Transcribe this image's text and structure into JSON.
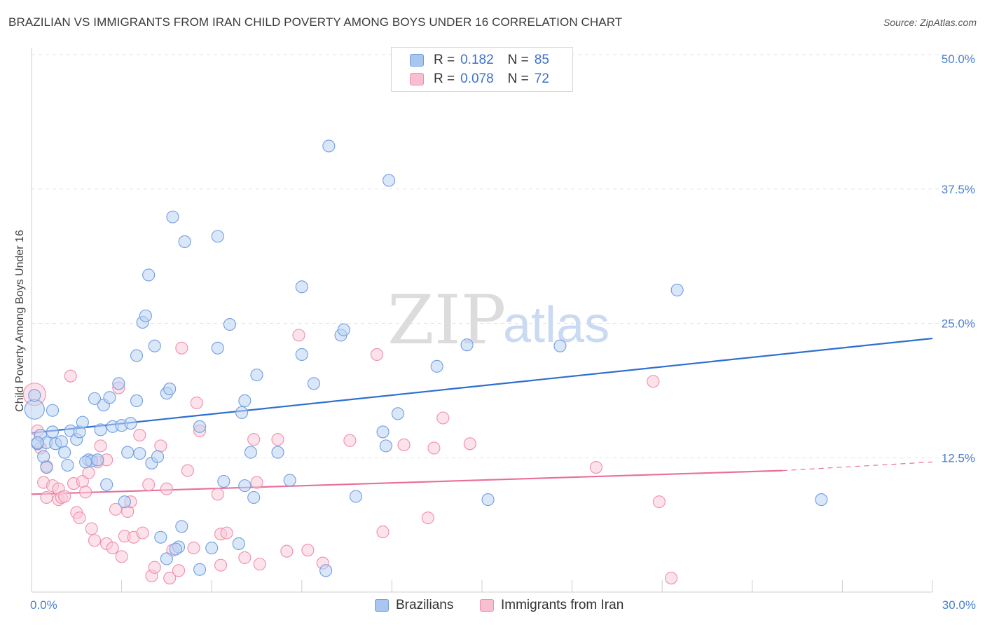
{
  "title": "BRAZILIAN VS IMMIGRANTS FROM IRAN CHILD POVERTY AMONG BOYS UNDER 16 CORRELATION CHART",
  "source": "Source: ZipAtlas.com",
  "watermark": {
    "zip": "ZIP",
    "atlas": "atlas"
  },
  "legend": {
    "rows": [
      {
        "r_label": "R =",
        "r_value": "0.182",
        "n_label": "N =",
        "n_value": "85",
        "color": "#a8c6ef",
        "stroke": "#6f9ee0"
      },
      {
        "r_label": "R =",
        "r_value": "0.078",
        "n_label": "N =",
        "n_value": "72",
        "color": "#f7bfd0",
        "stroke": "#ee8fab"
      }
    ]
  },
  "bottom_legend": {
    "brazilians": "Brazilians",
    "iran": "Immigrants from Iran"
  },
  "chart_data": {
    "type": "scatter",
    "xlabel": "",
    "ylabel": "Child Poverty Among Boys Under 16",
    "x_ticks": [
      "0.0%",
      "30.0%"
    ],
    "y_ticks": [
      "12.5%",
      "25.0%",
      "37.5%",
      "50.0%"
    ],
    "xlim": [
      0,
      30
    ],
    "ylim": [
      0,
      50
    ],
    "grid": true,
    "legend_position": "top-center",
    "colors": {
      "brazilians": "#6f9ee0",
      "brazilians_fill": "#bcd4f4",
      "iran": "#ee8fab",
      "iran_fill": "#f9cbd9",
      "line_blue": "#2e6fd0",
      "line_pink": "#e86f9a"
    },
    "series": [
      {
        "name": "Brazilians",
        "r": 0.182,
        "n": 85,
        "trend": {
          "x": [
            0,
            30
          ],
          "y": [
            14.8,
            23.6
          ]
        },
        "points": [
          [
            0.1,
            17.0
          ],
          [
            0.1,
            18.3
          ],
          [
            0.2,
            13.8
          ],
          [
            0.3,
            14.6
          ],
          [
            0.4,
            12.6
          ],
          [
            0.5,
            11.6
          ],
          [
            0.5,
            13.9
          ],
          [
            0.7,
            14.9
          ],
          [
            0.7,
            16.9
          ],
          [
            0.8,
            13.8
          ],
          [
            1.0,
            14.0
          ],
          [
            1.1,
            13.0
          ],
          [
            1.2,
            11.8
          ],
          [
            1.3,
            15.0
          ],
          [
            1.5,
            14.2
          ],
          [
            1.6,
            14.9
          ],
          [
            1.7,
            15.8
          ],
          [
            1.9,
            12.3
          ],
          [
            2.0,
            12.2
          ],
          [
            2.1,
            18.0
          ],
          [
            2.2,
            12.3
          ],
          [
            2.3,
            15.1
          ],
          [
            2.4,
            17.4
          ],
          [
            2.5,
            10.0
          ],
          [
            2.6,
            18.1
          ],
          [
            2.7,
            15.4
          ],
          [
            2.9,
            19.4
          ],
          [
            3.0,
            15.5
          ],
          [
            3.1,
            8.4
          ],
          [
            3.2,
            13.0
          ],
          [
            3.3,
            15.7
          ],
          [
            3.5,
            17.8
          ],
          [
            3.5,
            22.0
          ],
          [
            3.6,
            12.9
          ],
          [
            3.7,
            25.1
          ],
          [
            3.8,
            25.7
          ],
          [
            3.9,
            29.5
          ],
          [
            4.0,
            12.0
          ],
          [
            4.1,
            22.9
          ],
          [
            4.2,
            12.6
          ],
          [
            4.3,
            5.1
          ],
          [
            4.5,
            18.5
          ],
          [
            4.5,
            3.1
          ],
          [
            4.6,
            18.9
          ],
          [
            4.7,
            34.9
          ],
          [
            4.9,
            4.2
          ],
          [
            5.0,
            6.1
          ],
          [
            5.1,
            32.6
          ],
          [
            5.6,
            2.1
          ],
          [
            5.6,
            15.4
          ],
          [
            6.0,
            4.1
          ],
          [
            6.2,
            33.1
          ],
          [
            6.2,
            22.7
          ],
          [
            6.4,
            10.3
          ],
          [
            6.6,
            24.9
          ],
          [
            6.9,
            4.5
          ],
          [
            7.0,
            16.7
          ],
          [
            7.1,
            17.8
          ],
          [
            7.1,
            9.9
          ],
          [
            7.3,
            13.0
          ],
          [
            7.4,
            8.8
          ],
          [
            7.5,
            20.2
          ],
          [
            8.2,
            13.0
          ],
          [
            8.6,
            10.4
          ],
          [
            9.0,
            22.1
          ],
          [
            9.0,
            28.4
          ],
          [
            9.4,
            19.4
          ],
          [
            9.8,
            2.0
          ],
          [
            9.9,
            41.5
          ],
          [
            10.3,
            23.9
          ],
          [
            10.4,
            24.4
          ],
          [
            10.8,
            8.9
          ],
          [
            11.7,
            14.9
          ],
          [
            11.8,
            13.6
          ],
          [
            11.9,
            38.3
          ],
          [
            12.2,
            16.6
          ],
          [
            13.5,
            21.0
          ],
          [
            14.5,
            23.0
          ],
          [
            15.2,
            8.6
          ],
          [
            17.6,
            22.9
          ],
          [
            21.5,
            28.1
          ],
          [
            26.3,
            8.6
          ],
          [
            0.2,
            13.9
          ],
          [
            1.8,
            12.1
          ],
          [
            4.8,
            4.0
          ]
        ]
      },
      {
        "name": "Immigrants from Iran",
        "r": 0.078,
        "n": 72,
        "trend": {
          "x": [
            0,
            25
          ],
          "y": [
            9.1,
            11.3
          ]
        },
        "trend_dashed": {
          "x": [
            25,
            30
          ],
          "y": [
            11.3,
            12.1
          ]
        },
        "points": [
          [
            0.1,
            18.4
          ],
          [
            0.2,
            15.0
          ],
          [
            0.3,
            13.4
          ],
          [
            0.4,
            10.2
          ],
          [
            0.5,
            11.7
          ],
          [
            0.5,
            8.8
          ],
          [
            0.7,
            9.9
          ],
          [
            0.9,
            8.6
          ],
          [
            0.9,
            9.6
          ],
          [
            1.0,
            8.8
          ],
          [
            1.1,
            8.9
          ],
          [
            1.3,
            20.1
          ],
          [
            1.4,
            10.1
          ],
          [
            1.5,
            7.4
          ],
          [
            1.6,
            6.9
          ],
          [
            1.7,
            10.3
          ],
          [
            1.8,
            9.3
          ],
          [
            1.9,
            11.1
          ],
          [
            2.0,
            5.9
          ],
          [
            2.1,
            4.8
          ],
          [
            2.2,
            12.1
          ],
          [
            2.3,
            13.6
          ],
          [
            2.5,
            4.5
          ],
          [
            2.5,
            12.3
          ],
          [
            2.7,
            4.1
          ],
          [
            2.8,
            7.7
          ],
          [
            2.9,
            19.0
          ],
          [
            3.0,
            3.3
          ],
          [
            3.1,
            5.2
          ],
          [
            3.2,
            7.5
          ],
          [
            3.3,
            8.4
          ],
          [
            3.4,
            5.1
          ],
          [
            3.6,
            14.6
          ],
          [
            3.7,
            5.5
          ],
          [
            3.9,
            10.0
          ],
          [
            4.0,
            1.5
          ],
          [
            4.1,
            2.3
          ],
          [
            4.3,
            13.6
          ],
          [
            4.5,
            9.6
          ],
          [
            4.6,
            1.3
          ],
          [
            4.7,
            3.9
          ],
          [
            4.9,
            2.0
          ],
          [
            5.0,
            22.7
          ],
          [
            5.2,
            11.3
          ],
          [
            5.4,
            4.1
          ],
          [
            5.5,
            17.6
          ],
          [
            5.6,
            15.0
          ],
          [
            6.2,
            9.1
          ],
          [
            6.3,
            2.5
          ],
          [
            6.3,
            5.4
          ],
          [
            6.5,
            5.5
          ],
          [
            7.1,
            3.2
          ],
          [
            7.4,
            14.2
          ],
          [
            7.5,
            10.2
          ],
          [
            7.6,
            2.6
          ],
          [
            8.2,
            14.2
          ],
          [
            8.5,
            3.8
          ],
          [
            8.9,
            23.9
          ],
          [
            9.2,
            3.9
          ],
          [
            9.7,
            2.7
          ],
          [
            10.6,
            14.1
          ],
          [
            11.5,
            22.1
          ],
          [
            11.7,
            5.6
          ],
          [
            12.4,
            13.7
          ],
          [
            13.2,
            6.9
          ],
          [
            13.4,
            13.4
          ],
          [
            13.7,
            16.2
          ],
          [
            14.6,
            13.8
          ],
          [
            18.8,
            11.6
          ],
          [
            20.7,
            19.6
          ],
          [
            20.9,
            8.4
          ],
          [
            21.3,
            1.3
          ]
        ]
      }
    ]
  }
}
